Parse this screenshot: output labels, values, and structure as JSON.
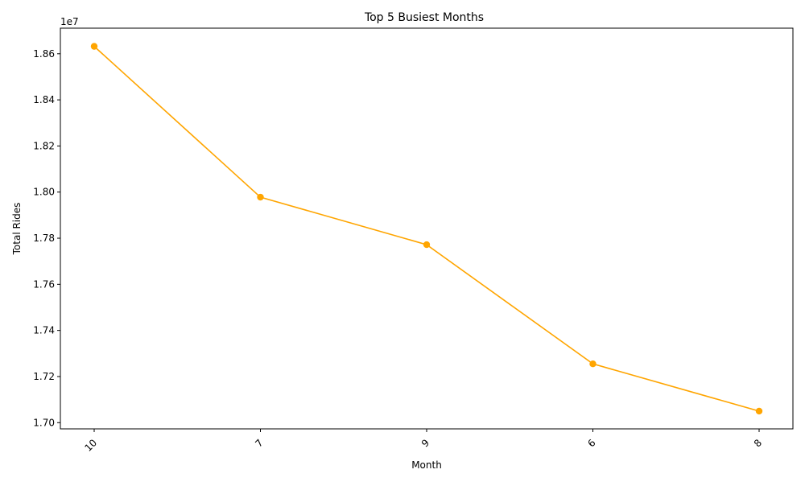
{
  "chart_data": {
    "type": "line",
    "title": "Top 5 Busiest Months",
    "xlabel": "Month",
    "ylabel": "Total Rides",
    "y_offset_label": "1e7",
    "categories": [
      "10",
      "7",
      "9",
      "6",
      "8"
    ],
    "series": [
      {
        "values": [
          18632000,
          17978000,
          17772000,
          17255000,
          17050000
        ],
        "color": "#ffa500",
        "marker": "circle"
      }
    ],
    "ylim": [
      16973000,
      18711000
    ],
    "y_scale": 10000000,
    "y_ticks": [
      17000000,
      17200000,
      17400000,
      17600000,
      17800000,
      18000000,
      18200000,
      18400000,
      18600000
    ],
    "y_tick_labels": [
      "1.70",
      "1.72",
      "1.74",
      "1.76",
      "1.78",
      "1.80",
      "1.82",
      "1.84",
      "1.86"
    ],
    "x_tick_rotation": 45,
    "grid": false,
    "legend": "none"
  }
}
